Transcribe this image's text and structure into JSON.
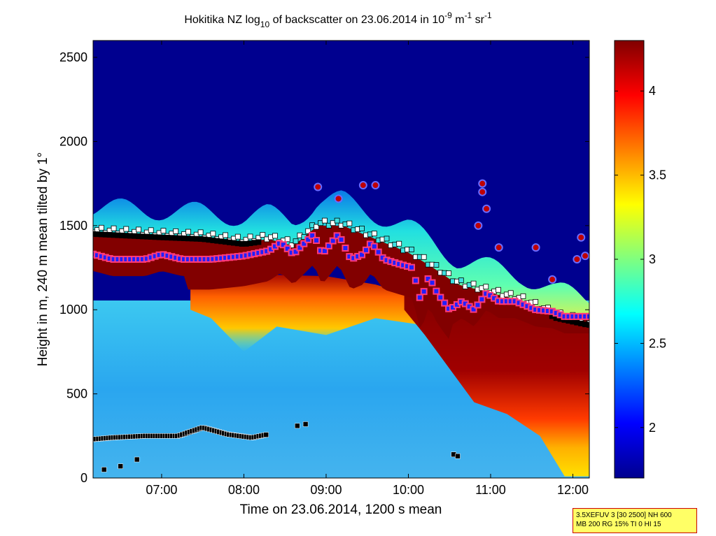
{
  "chart_data": {
    "type": "heatmap",
    "title": {
      "prefix": "Hokitika NZ log",
      "sub": "10",
      "middle": " of backscatter on 23.06.2014 in 10",
      "exp1": "-9",
      "mid2": " m",
      "exp2": "-1",
      "mid3": " sr",
      "exp3": "-1"
    },
    "xlabel": "Time on 23.06.2014, 1200 s mean",
    "ylabel": "Height in m, 240 m mean tilted by 1°",
    "xlim": [
      "06:10",
      "12:12"
    ],
    "ylim": [
      0,
      2600
    ],
    "x_ticks": [
      "07:00",
      "08:00",
      "09:00",
      "10:00",
      "11:00",
      "12:00"
    ],
    "y_ticks": [
      0,
      500,
      1000,
      1500,
      2000,
      2500
    ],
    "colorbar": {
      "range": [
        1.7,
        4.3
      ],
      "ticks": [
        2,
        2.5,
        3,
        3.5,
        4
      ],
      "colormap": "jet"
    },
    "layers": {
      "background_top": "#00008f",
      "lower_field": "#2aa6ef",
      "saturated_layer": "#820000"
    },
    "cloud_base_height_m": [
      [
        6.17,
        1330
      ],
      [
        6.4,
        1300
      ],
      [
        6.8,
        1300
      ],
      [
        7.0,
        1330
      ],
      [
        7.25,
        1300
      ],
      [
        7.6,
        1300
      ],
      [
        8.0,
        1320
      ],
      [
        8.3,
        1350
      ],
      [
        8.45,
        1400
      ],
      [
        8.6,
        1330
      ],
      [
        8.85,
        1450
      ],
      [
        8.95,
        1330
      ],
      [
        9.15,
        1450
      ],
      [
        9.3,
        1300
      ],
      [
        9.45,
        1330
      ],
      [
        9.55,
        1400
      ],
      [
        9.7,
        1300
      ],
      [
        9.9,
        1270
      ],
      [
        10.05,
        1250
      ],
      [
        10.15,
        1050
      ],
      [
        10.25,
        1200
      ],
      [
        10.35,
        1100
      ],
      [
        10.5,
        1000
      ],
      [
        10.65,
        1050
      ],
      [
        10.8,
        1000
      ],
      [
        10.95,
        1100
      ],
      [
        11.1,
        1050
      ],
      [
        11.3,
        1050
      ],
      [
        11.55,
        1000
      ],
      [
        11.75,
        990
      ],
      [
        11.9,
        960
      ],
      [
        12.05,
        960
      ],
      [
        12.18,
        960
      ]
    ],
    "upper_layer_top_m": [
      [
        6.17,
        1460
      ],
      [
        7.0,
        1440
      ],
      [
        7.5,
        1430
      ],
      [
        8.0,
        1400
      ],
      [
        8.3,
        1420
      ],
      [
        8.6,
        1380
      ],
      [
        8.9,
        1500
      ],
      [
        9.2,
        1500
      ],
      [
        9.6,
        1420
      ],
      [
        10.0,
        1340
      ],
      [
        10.3,
        1250
      ],
      [
        10.6,
        1150
      ],
      [
        11.0,
        1100
      ],
      [
        11.4,
        1050
      ],
      [
        11.8,
        960
      ],
      [
        12.18,
        920
      ]
    ],
    "boundary_layer_height_m": [
      [
        6.17,
        230
      ],
      [
        6.4,
        240
      ],
      [
        6.8,
        250
      ],
      [
        7.2,
        250
      ],
      [
        7.5,
        300
      ],
      [
        7.8,
        260
      ],
      [
        8.1,
        240
      ],
      [
        8.3,
        260
      ]
    ],
    "red_circle_markers": [
      [
        8.9,
        1730
      ],
      [
        9.15,
        1660
      ],
      [
        9.45,
        1740
      ],
      [
        9.6,
        1740
      ],
      [
        10.9,
        1750
      ],
      [
        10.9,
        1700
      ],
      [
        10.95,
        1600
      ],
      [
        10.85,
        1500
      ],
      [
        11.1,
        1370
      ],
      [
        11.55,
        1370
      ],
      [
        11.75,
        1180
      ],
      [
        12.1,
        1430
      ],
      [
        12.05,
        1300
      ],
      [
        12.15,
        1320
      ]
    ],
    "lower_black_markers": [
      [
        6.3,
        50
      ],
      [
        6.5,
        70
      ],
      [
        6.7,
        110
      ],
      [
        8.65,
        310
      ],
      [
        8.75,
        320
      ],
      [
        10.55,
        140
      ],
      [
        10.6,
        130
      ]
    ]
  },
  "info_box": {
    "line1": "3.5XEFUV 3 [30 2500] NH 600",
    "line2": "MB 200 RG 15% TI 0 HI 15"
  }
}
